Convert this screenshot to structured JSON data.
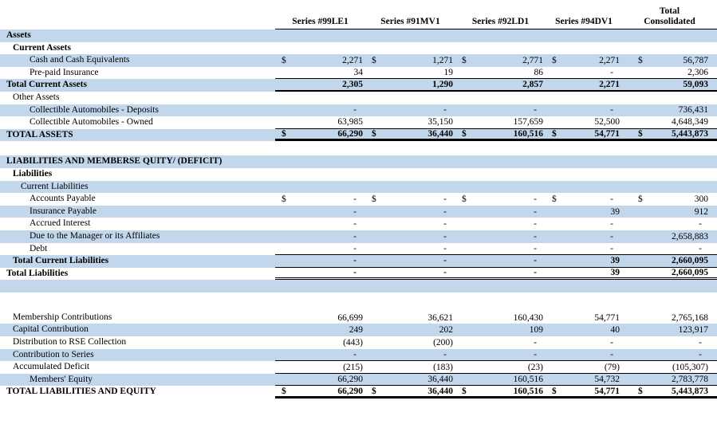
{
  "colors": {
    "stripe_blue": "#C3D7EC",
    "border_black": "#000000",
    "text": "#000000",
    "background": "#FFFFFF"
  },
  "columns": {
    "series": [
      "Series #99LE1",
      "Series #91MV1",
      "Series #92LD1",
      "Series #94DV1"
    ],
    "total": {
      "line1": "Total",
      "line2": "Consolidated"
    }
  },
  "table": {
    "rows": [
      {
        "label": "Assets",
        "indent": 0,
        "bold": true,
        "stripe": true
      },
      {
        "label": "Current Assets",
        "indent": 1,
        "bold": true,
        "stripe": false
      },
      {
        "label": "Cash and Cash Equivalents",
        "indent": 3,
        "stripe": true,
        "dollar": true,
        "values": [
          "2,271",
          "1,271",
          "2,771",
          "2,271",
          "56,787"
        ]
      },
      {
        "label": "Pre-paid Insurance",
        "indent": 3,
        "stripe": false,
        "border": "thin",
        "values": [
          "34",
          "19",
          "86",
          "-",
          "2,306"
        ]
      },
      {
        "label": "Total Current Assets",
        "indent": 0,
        "bold": true,
        "stripe": true,
        "values_bold": true,
        "border": "thick",
        "values": [
          "2,305",
          "1,290",
          "2,857",
          "2,271",
          "59,093"
        ]
      },
      {
        "label": "Other Assets",
        "indent": 1,
        "stripe": false
      },
      {
        "label": "Collectible Automobiles - Deposits",
        "indent": 3,
        "stripe": true,
        "values": [
          "-",
          "-",
          "-",
          "-",
          "736,431"
        ]
      },
      {
        "label": "Collectible Automobiles - Owned",
        "indent": 3,
        "stripe": false,
        "border": "thin",
        "values": [
          "63,985",
          "35,150",
          "157,659",
          "52,500",
          "4,648,349"
        ]
      },
      {
        "label": "TOTAL ASSETS",
        "indent": 0,
        "bold": true,
        "stripe": true,
        "dollar": true,
        "values_bold": true,
        "border": "xthick",
        "values": [
          "66,290",
          "36,440",
          "160,516",
          "54,771",
          "5,443,873"
        ]
      },
      {
        "blank": true,
        "stripe": false,
        "height": 18
      },
      {
        "label": "LIABILITIES AND MEMBERSE QUITY/ (DEFICIT)",
        "indent": 0,
        "bold": true,
        "stripe": true
      },
      {
        "label": "Liabilities",
        "indent": 1,
        "bold": true,
        "stripe": false
      },
      {
        "label": "Current Liabilities",
        "indent": 2,
        "stripe": true
      },
      {
        "label": "Accounts Payable",
        "indent": 3,
        "stripe": false,
        "dollar": true,
        "values": [
          "-",
          "-",
          "-",
          "-",
          "300"
        ]
      },
      {
        "label": "Insurance Payable",
        "indent": 3,
        "stripe": true,
        "values": [
          "-",
          "-",
          "-",
          "39",
          "912"
        ]
      },
      {
        "label": "Accrued Interest",
        "indent": 3,
        "stripe": false,
        "values": [
          "-",
          "-",
          "-",
          "-",
          "-"
        ]
      },
      {
        "label": "Due to the Manager or its Affiliates",
        "indent": 3,
        "stripe": true,
        "values": [
          "-",
          "-",
          "-",
          "-",
          "2,658,883"
        ]
      },
      {
        "label": "Debt",
        "indent": 3,
        "stripe": false,
        "border": "thin",
        "values": [
          "-",
          "-",
          "-",
          "-",
          "-"
        ]
      },
      {
        "label": "Total Current Liabilities",
        "indent": 1,
        "bold": true,
        "stripe": true,
        "values_bold": true,
        "border": "thin",
        "values": [
          "-",
          "-",
          "-",
          "39",
          "2,660,095"
        ]
      },
      {
        "label": "Total Liabilities",
        "indent": 0,
        "bold": true,
        "stripe": false,
        "values_bold": true,
        "border": "double",
        "values": [
          "-",
          "-",
          "-",
          "39",
          "2,660,095"
        ]
      },
      {
        "blank": true,
        "stripe": true,
        "height": 15.6
      },
      {
        "blank": true,
        "stripe": false,
        "height": 24
      },
      {
        "label": "Membership Contributions",
        "indent": 1,
        "stripe": false,
        "values": [
          "66,699",
          "36,621",
          "160,430",
          "54,771",
          "2,765,168"
        ]
      },
      {
        "label": "Capital Contribution",
        "indent": 1,
        "stripe": true,
        "values": [
          "249",
          "202",
          "109",
          "40",
          "123,917"
        ]
      },
      {
        "label": "Distribution to RSE Collection",
        "indent": 1,
        "stripe": false,
        "values": [
          "(443)",
          "(200)",
          "-",
          "-",
          "-"
        ]
      },
      {
        "label": "Contribution to Series",
        "indent": 1,
        "stripe": true,
        "border": "thin",
        "values": [
          "-",
          "-",
          "-",
          "-",
          "-"
        ]
      },
      {
        "label": "Accumulated Deficit",
        "indent": 1,
        "stripe": false,
        "border": "thin",
        "values": [
          "(215)",
          "(183)",
          "(23)",
          "(79)",
          "(105,307)"
        ]
      },
      {
        "label": "Members' Equity",
        "indent": 3,
        "stripe": true,
        "border": "thin",
        "values": [
          "66,290",
          "36,440",
          "160,516",
          "54,732",
          "2,783,778"
        ]
      },
      {
        "label": "TOTAL LIABILITIES AND EQUITY",
        "indent": 0,
        "bold": true,
        "stripe": false,
        "dollar": true,
        "values_bold": true,
        "border": "xthick",
        "values": [
          "66,290",
          "36,440",
          "160,516",
          "54,771",
          "5,443,873"
        ]
      }
    ]
  }
}
